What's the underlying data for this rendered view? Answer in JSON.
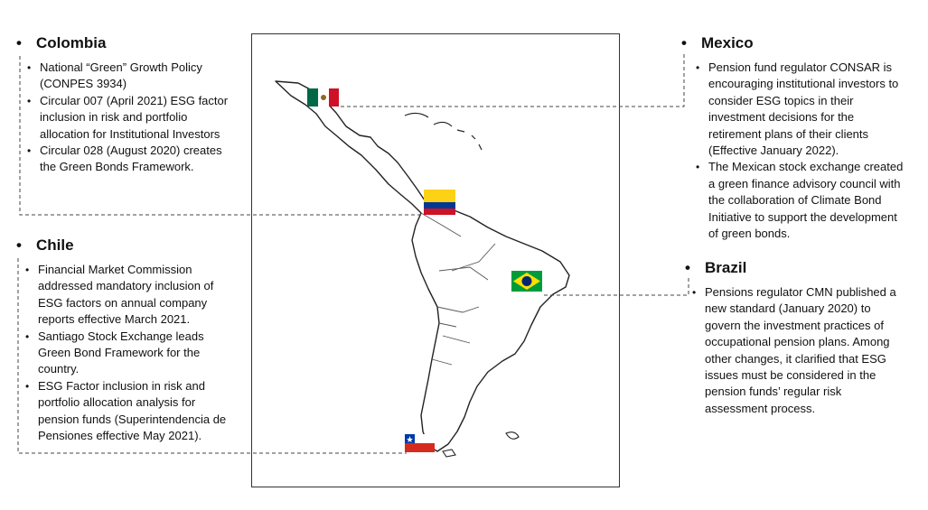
{
  "colors": {
    "connector": "#444444",
    "mexico_flag": [
      "#006847",
      "#ffffff",
      "#ce1126"
    ],
    "colombia_flag": [
      "#fcd116",
      "#003893",
      "#ce1126"
    ],
    "brazil_flag": [
      "#009c3b",
      "#ffdf00",
      "#002776"
    ],
    "chile_flag": [
      "#ffffff",
      "#d52b1e",
      "#0039a6"
    ]
  },
  "icons": {
    "map": "latin-america-outline-map",
    "flags": [
      "mexico-flag-icon",
      "colombia-flag-icon",
      "brazil-flag-icon",
      "chile-flag-icon"
    ]
  },
  "colombia": {
    "title": "Colombia",
    "items": [
      "National “Green” Growth Policy (CONPES 3934)",
      "Circular 007 (April 2021) ESG factor inclusion in risk and portfolio allocation for Institutional Investors",
      "Circular 028 (August 2020) creates the Green Bonds Framework."
    ]
  },
  "chile": {
    "title": "Chile",
    "items": [
      "Financial Market Commission addressed mandatory inclusion of ESG factors on annual company reports effective March 2021.",
      "Santiago Stock Exchange leads Green Bond Framework for the country.",
      "ESG Factor inclusion in risk and portfolio allocation analysis for pension funds (Superintendencia de Pensiones effective May 2021)."
    ]
  },
  "mexico": {
    "title": "Mexico",
    "items": [
      "Pension fund regulator CONSAR is encouraging institutional investors to consider ESG topics in their investment decisions for the retirement plans of their clients (Effective January 2022).",
      "The Mexican stock exchange created a green finance advisory council with the collaboration of Climate Bond Initiative to support the development of green bonds."
    ]
  },
  "brazil": {
    "title": "Brazil",
    "items": [
      "Pensions regulator CMN published a new standard (January 2020) to govern the investment practices of occupational pension plans. Among other changes, it clarified that ESG issues must be considered in the pension funds’ regular risk assessment process."
    ]
  }
}
